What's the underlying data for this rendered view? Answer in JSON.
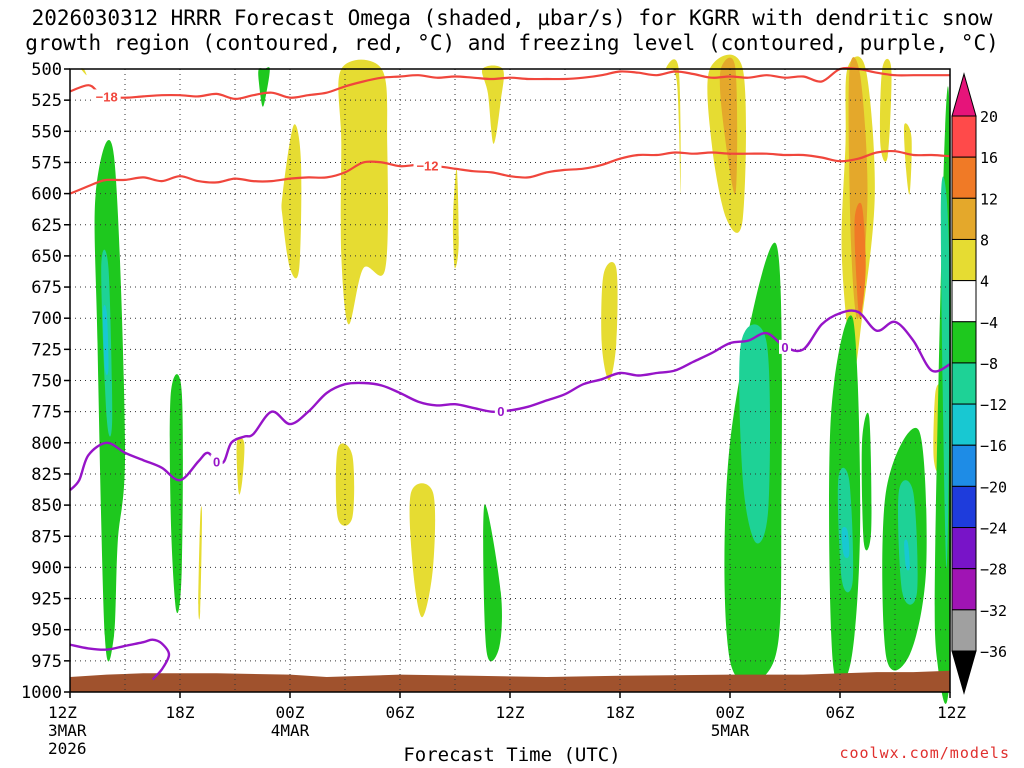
{
  "title_line1": "2026030312 HRRR Forecast Omega (shaded, μbar/s) for KGRR with dendritic snow",
  "title_line2": "growth region (contoured, red, °C) and freezing level (contoured, purple, °C)",
  "credit": "coolwx.com/models",
  "chart_data": {
    "type": "heatmap",
    "title": "2026030312 HRRR Forecast Omega (shaded, μbar/s) for KGRR with dendritic snow growth region (contoured, red, °C) and freezing level (contoured, purple, °C)",
    "xlabel": "Forecast Time (UTC)",
    "ylabel": "",
    "x_range_hours": [
      0,
      48
    ],
    "y_range_hpa": [
      500,
      1000
    ],
    "y_ticks": [
      500,
      525,
      550,
      575,
      600,
      625,
      650,
      675,
      700,
      725,
      750,
      775,
      800,
      825,
      850,
      875,
      900,
      925,
      950,
      975,
      1000
    ],
    "x_ticks": [
      {
        "hour": 0,
        "label": "12Z",
        "date": "3MAR",
        "year": "2026"
      },
      {
        "hour": 6,
        "label": "18Z",
        "date": "",
        "year": ""
      },
      {
        "hour": 12,
        "label": "00Z",
        "date": "4MAR",
        "year": ""
      },
      {
        "hour": 18,
        "label": "06Z",
        "date": "",
        "year": ""
      },
      {
        "hour": 24,
        "label": "12Z",
        "date": "",
        "year": ""
      },
      {
        "hour": 30,
        "label": "18Z",
        "date": "",
        "year": ""
      },
      {
        "hour": 36,
        "label": "00Z",
        "date": "5MAR",
        "year": ""
      },
      {
        "hour": 42,
        "label": "06Z",
        "date": "",
        "year": ""
      },
      {
        "hour": 48,
        "label": "12Z",
        "date": "",
        "year": ""
      }
    ],
    "colorbar": {
      "labels": [
        "20",
        "16",
        "12",
        "8",
        "4",
        "−4",
        "−8",
        "−12",
        "−16",
        "−20",
        "−24",
        "−28",
        "−32",
        "−36"
      ],
      "bins": [
        {
          "lo": 16,
          "hi": 20,
          "color": "#ff4a4a"
        },
        {
          "lo": 12,
          "hi": 16,
          "color": "#f07a26"
        },
        {
          "lo": 8,
          "hi": 12,
          "color": "#e4a82b"
        },
        {
          "lo": 4,
          "hi": 8,
          "color": "#e6dc32"
        },
        {
          "lo": -4,
          "hi": 4,
          "color": "#ffffff"
        },
        {
          "lo": -8,
          "hi": -4,
          "color": "#1ec81e"
        },
        {
          "lo": -12,
          "hi": -8,
          "color": "#1ed296"
        },
        {
          "lo": -16,
          "hi": -12,
          "color": "#18c8d2"
        },
        {
          "lo": -20,
          "hi": -16,
          "color": "#1e8ce6"
        },
        {
          "lo": -24,
          "hi": -20,
          "color": "#1e3cdc"
        },
        {
          "lo": -28,
          "hi": -24,
          "color": "#7814c8"
        },
        {
          "lo": -32,
          "hi": -28,
          "color": "#a014b4"
        },
        {
          "lo": -36,
          "hi": -32,
          "color": "#a0a0a0"
        }
      ],
      "top_arrow_color": "#e6147a",
      "bottom_arrow_color": "#000000"
    },
    "omega_regions": [
      {
        "value": 6,
        "x": [
          0.6,
          0.75,
          0.9
        ],
        "p": [
          500,
          500,
          505
        ]
      },
      {
        "value": -6,
        "x": [
          10.3,
          10.6,
          10.9,
          10.7,
          10.5,
          10.3
        ],
        "p": [
          500,
          500,
          500,
          520,
          530,
          510
        ]
      },
      {
        "value": 6,
        "x": [
          14.8,
          17.0,
          17.3,
          17.2,
          16.0,
          15.2,
          14.8,
          14.8
        ],
        "p": [
          500,
          500,
          560,
          660,
          660,
          705,
          650,
          560
        ]
      },
      {
        "value": 6,
        "x": [
          11.6,
          12.2,
          12.6,
          12.5,
          12.0,
          11.6
        ],
        "p": [
          600,
          545,
          575,
          660,
          660,
          620
        ]
      },
      {
        "value": 6,
        "x": [
          22.5,
          23.6,
          23.5,
          23.1,
          22.8
        ],
        "p": [
          500,
          500,
          525,
          560,
          520
        ]
      },
      {
        "value": 6,
        "x": [
          20.9,
          21.1,
          21.2,
          21.0,
          20.9
        ],
        "p": [
          615,
          580,
          640,
          660,
          640
        ]
      },
      {
        "value": 6,
        "x": [
          29.1,
          29.8,
          29.8,
          29.4,
          29.0
        ],
        "p": [
          665,
          660,
          720,
          750,
          720
        ]
      },
      {
        "value": 6,
        "x": [
          32.5,
          33.2,
          33.3,
          33.1
        ],
        "p": [
          500,
          500,
          600,
          510
        ]
      },
      {
        "value": 6,
        "x": [
          34.9,
          36.7,
          36.7,
          35.8,
          35.0
        ],
        "p": [
          500,
          500,
          620,
          620,
          560
        ]
      },
      {
        "value": 10,
        "x": [
          35.5,
          36.3,
          36.3,
          35.6
        ],
        "p": [
          500,
          500,
          600,
          540
        ]
      },
      {
        "value": 6,
        "x": [
          42.4,
          43.4,
          43.9,
          43.2,
          42.7,
          42.1,
          42.3
        ],
        "p": [
          500,
          500,
          600,
          700,
          740,
          650,
          560
        ]
      },
      {
        "value": 10,
        "x": [
          42.5,
          43.1,
          43.5,
          43.0,
          42.6
        ],
        "p": [
          505,
          505,
          600,
          700,
          640
        ]
      },
      {
        "value": 14,
        "x": [
          42.8,
          43.2,
          43.4,
          43.1,
          42.9
        ],
        "p": [
          620,
          610,
          660,
          700,
          670
        ]
      },
      {
        "value": 6,
        "x": [
          44.3,
          44.8,
          44.6,
          44.2
        ],
        "p": [
          500,
          500,
          570,
          560
        ]
      },
      {
        "value": 6,
        "x": [
          45.5,
          45.9,
          45.8,
          45.6
        ],
        "p": [
          545,
          555,
          600,
          580
        ]
      },
      {
        "value": 6,
        "x": [
          14.6,
          15.4,
          15.4,
          14.6
        ],
        "p": [
          805,
          810,
          860,
          860
        ]
      },
      {
        "value": 6,
        "x": [
          9.1,
          9.5,
          9.4,
          9.2
        ],
        "p": [
          800,
          800,
          830,
          840
        ]
      },
      {
        "value": 6,
        "x": [
          7.1,
          7.2,
          7.1,
          7.0
        ],
        "p": [
          860,
          860,
          935,
          930
        ]
      },
      {
        "value": 6,
        "x": [
          18.6,
          19.8,
          19.8,
          19.2,
          18.7
        ],
        "p": [
          840,
          840,
          900,
          940,
          900
        ]
      },
      {
        "value": 6,
        "x": [
          47.2,
          47.5,
          47.4,
          47.1
        ],
        "p": [
          760,
          760,
          820,
          810
        ]
      },
      {
        "value": -6,
        "x": [
          1.4,
          2.4,
          3.0,
          2.6,
          2.4,
          1.9,
          1.5
        ],
        "p": [
          600,
          570,
          800,
          880,
          955,
          955,
          720
        ]
      },
      {
        "value": -10,
        "x": [
          1.7,
          2.1,
          2.3,
          2.0
        ],
        "p": [
          660,
          660,
          780,
          780
        ]
      },
      {
        "value": -14,
        "x": [
          1.8,
          2.0,
          2.1,
          1.9
        ],
        "p": [
          695,
          695,
          740,
          740
        ]
      },
      {
        "value": -6,
        "x": [
          5.5,
          6.1,
          6.1,
          5.8,
          5.5
        ],
        "p": [
          760,
          760,
          900,
          935,
          860
        ]
      },
      {
        "value": -6,
        "x": [
          22.6,
          23.5,
          23.4,
          22.7
        ],
        "p": [
          850,
          920,
          965,
          965
        ]
      },
      {
        "value": -6,
        "x": [
          36.0,
          38.5,
          38.8,
          38.4,
          36.0
        ],
        "p": [
          800,
          640,
          860,
          975,
          975
        ]
      },
      {
        "value": -10,
        "x": [
          36.6,
          38.0,
          38.1,
          37.4,
          36.7
        ],
        "p": [
          720,
          720,
          850,
          880,
          830
        ]
      },
      {
        "value": -6,
        "x": [
          41.5,
          42.7,
          43.1,
          42.6,
          41.6
        ],
        "p": [
          780,
          700,
          860,
          975,
          975
        ]
      },
      {
        "value": -10,
        "x": [
          41.9,
          42.5,
          42.7,
          42.1
        ],
        "p": [
          830,
          830,
          910,
          910
        ]
      },
      {
        "value": -16,
        "x": [
          42.1,
          42.4,
          42.5,
          42.2
        ],
        "p": [
          870,
          870,
          890,
          890
        ]
      },
      {
        "value": -6,
        "x": [
          44.5,
          46.3,
          46.7,
          45.8,
          44.5
        ],
        "p": [
          840,
          790,
          900,
          970,
          970
        ]
      },
      {
        "value": -10,
        "x": [
          45.2,
          46.0,
          46.2,
          45.4
        ],
        "p": [
          840,
          840,
          920,
          920
        ]
      },
      {
        "value": -16,
        "x": [
          45.5,
          45.7,
          45.8,
          45.6
        ],
        "p": [
          880,
          880,
          900,
          900
        ]
      },
      {
        "value": -6,
        "x": [
          47.2,
          47.7,
          48.0,
          48.0,
          47.3
        ],
        "p": [
          880,
          560,
          560,
          975,
          975
        ]
      },
      {
        "value": -10,
        "x": [
          47.5,
          47.8,
          48.0,
          47.8
        ],
        "p": [
          620,
          600,
          700,
          900
        ]
      },
      {
        "value": -6,
        "x": [
          43.2,
          43.6,
          43.7,
          43.3
        ],
        "p": [
          800,
          780,
          870,
          880
        ]
      }
    ],
    "dgz_contours": [
      {
        "label": "−18",
        "label_at_hour": 2,
        "x": [
          0,
          1,
          1.5,
          2,
          3,
          4,
          5,
          6,
          7,
          8,
          9,
          10,
          11,
          12,
          13,
          14,
          15,
          16,
          17,
          18,
          19,
          20,
          21,
          22,
          23,
          24,
          25,
          26,
          27,
          28,
          29,
          30,
          31,
          32,
          33,
          34,
          35,
          36,
          37,
          38,
          39,
          40,
          41,
          42,
          43,
          44,
          45,
          46,
          47,
          48
        ],
        "p": [
          518,
          513,
          518,
          522,
          523,
          522,
          521,
          521,
          522,
          520,
          524,
          521,
          519,
          523,
          521,
          519,
          514,
          510,
          507,
          506,
          505,
          507,
          506,
          507,
          508,
          507,
          508,
          508,
          508,
          507,
          505,
          502,
          503,
          505,
          502,
          504,
          507,
          506,
          507,
          505,
          507,
          506,
          510,
          500,
          500,
          503,
          505,
          505,
          505,
          505
        ]
      },
      {
        "label": "−12",
        "label_at_hour": 19.5,
        "x": [
          0,
          1,
          1.5,
          2,
          3,
          4,
          5,
          6,
          7,
          8,
          9,
          10,
          11,
          12,
          13,
          14,
          15,
          16,
          17,
          18,
          19,
          20,
          21,
          22,
          23,
          24,
          25,
          26,
          27,
          28,
          29,
          30,
          31,
          32,
          33,
          34,
          35,
          36,
          37,
          38,
          39,
          40,
          41,
          42,
          43,
          44,
          45,
          46,
          47,
          48
        ],
        "p": [
          600,
          594,
          591,
          589,
          589,
          587,
          590,
          586,
          590,
          591,
          588,
          590,
          590,
          588,
          587,
          587,
          583,
          575,
          575,
          578,
          577,
          578,
          580,
          582,
          583,
          586,
          587,
          583,
          581,
          580,
          577,
          572,
          569,
          569,
          567,
          568,
          567,
          568,
          568,
          568,
          569,
          569,
          571,
          574,
          572,
          567,
          566,
          569,
          569,
          570
        ]
      }
    ],
    "freezing_contours": [
      {
        "label": "0",
        "label_at_hours": [
          8,
          23.5,
          39
        ],
        "x": [
          0,
          0.5,
          1,
          2,
          3,
          4,
          5,
          6,
          7,
          7.5,
          8,
          8.4,
          8.8,
          9.5,
          10,
          11,
          12,
          13,
          14,
          15,
          16,
          17,
          18,
          19,
          20,
          21,
          22,
          23,
          24,
          25,
          26,
          27,
          28,
          29,
          30,
          31,
          32,
          33,
          34,
          35,
          36,
          37,
          38,
          39,
          40,
          41,
          42,
          43,
          44,
          45,
          46,
          47,
          48
        ],
        "p": [
          838,
          830,
          810,
          800,
          808,
          814,
          820,
          830,
          815,
          808,
          815,
          815,
          800,
          795,
          793,
          775,
          785,
          775,
          760,
          753,
          752,
          754,
          760,
          767,
          770,
          769,
          772,
          775,
          774,
          771,
          766,
          761,
          753,
          749,
          744,
          746,
          744,
          742,
          735,
          728,
          720,
          718,
          712,
          723,
          725,
          705,
          696,
          695,
          710,
          703,
          718,
          742,
          737
        ]
      },
      {
        "label": "",
        "x": [
          0,
          1,
          2,
          3,
          4,
          4.5,
          5,
          5.4,
          5.0,
          4.5
        ],
        "p": [
          962,
          965,
          966,
          963,
          960,
          958,
          961,
          970,
          982,
          990
        ]
      }
    ],
    "terrain": {
      "surface_hpa": [
        988,
        986,
        985,
        985,
        986,
        988,
        986,
        987,
        988,
        987,
        986,
        986,
        984,
        984,
        983
      ],
      "hours": [
        0,
        2,
        4,
        8,
        12,
        14,
        18,
        22,
        26,
        30,
        36,
        40,
        44,
        46,
        48
      ],
      "color": "#a0522d"
    }
  }
}
